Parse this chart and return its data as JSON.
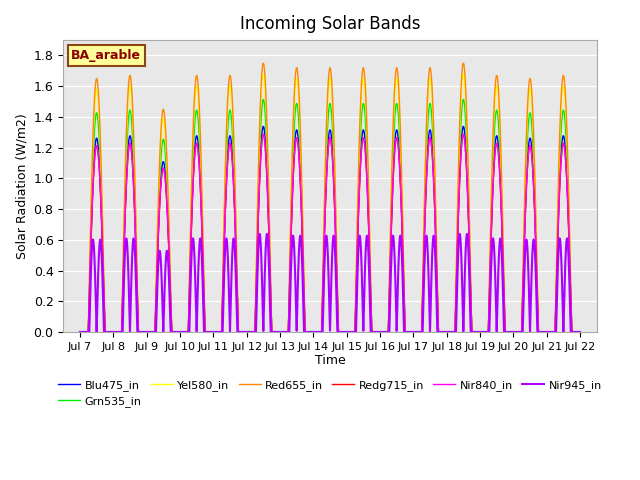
{
  "title": "Incoming Solar Bands",
  "xlabel": "Time",
  "ylabel": "Solar Radiation (W/m2)",
  "ylim": [
    0,
    1.9
  ],
  "yticks": [
    0.0,
    0.2,
    0.4,
    0.6,
    0.8,
    1.0,
    1.2,
    1.4,
    1.6,
    1.8
  ],
  "num_days": 15,
  "bg_color": "#e8e8e8",
  "annotation_text": "BA_arable",
  "annotation_color": "#8B0000",
  "annotation_bg": "#ffff99",
  "annotation_edge": "#8B4513",
  "series": [
    {
      "name": "Blu475_in",
      "color": "#0000ff",
      "scale": 1.3,
      "lw": 1.0
    },
    {
      "name": "Grn535_in",
      "color": "#00ee00",
      "scale": 1.47,
      "lw": 1.0
    },
    {
      "name": "Yel580_in",
      "color": "#ffff00",
      "scale": 1.63,
      "lw": 1.0
    },
    {
      "name": "Red655_in",
      "color": "#ff8800",
      "scale": 1.7,
      "lw": 1.0
    },
    {
      "name": "Redg715_in",
      "color": "#ff0000",
      "scale": 1.25,
      "lw": 1.0
    },
    {
      "name": "Nir840_in",
      "color": "#ff00ff",
      "scale": 1.25,
      "lw": 1.0
    },
    {
      "name": "Nir945_in",
      "color": "#aa00ff",
      "scale": 0.62,
      "lw": 1.5
    }
  ],
  "day_peaks": [
    1.65,
    1.67,
    1.45,
    1.67,
    1.67,
    1.75,
    1.72,
    1.72,
    1.72,
    1.72,
    1.72,
    1.75,
    1.67,
    1.65,
    1.67
  ],
  "xtick_labels": [
    "Jul 7",
    "Jul 8",
    "Jul 9",
    "Jul 10",
    "Jul 11",
    "Jul 12",
    "Jul 13",
    "Jul 14",
    "Jul 15",
    "Jul 16",
    "Jul 17",
    "Jul 18",
    "Jul 19",
    "Jul 20",
    "Jul 21",
    "Jul 22"
  ],
  "legend_order": [
    "Blu475_in",
    "Grn535_in",
    "Yel580_in",
    "Red655_in",
    "Redg715_in",
    "Nir840_in",
    "Nir945_in"
  ]
}
